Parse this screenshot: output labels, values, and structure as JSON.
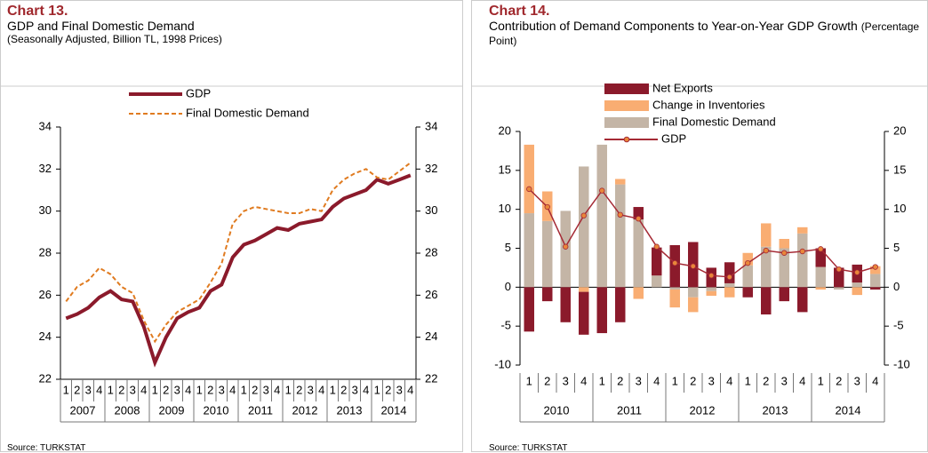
{
  "chart_data": [
    {
      "type": "line",
      "label": "Chart 13.",
      "title": "GDP and Final Domestic Demand",
      "subtitle": "(Seasonally Adjusted, Billion TL, 1998 Prices)",
      "source": "Source: TURKSTAT",
      "categories": [
        "1",
        "2",
        "3",
        "4",
        "1",
        "2",
        "3",
        "4",
        "1",
        "2",
        "3",
        "4",
        "1",
        "2",
        "3",
        "4",
        "1",
        "2",
        "3",
        "4",
        "1",
        "2",
        "3",
        "4",
        "1",
        "2",
        "3",
        "4",
        "1",
        "2",
        "3",
        "4"
      ],
      "years": [
        "2007",
        "2008",
        "2009",
        "2010",
        "2011",
        "2012",
        "2013",
        "2014"
      ],
      "ylim": [
        22,
        34
      ],
      "yticks": [
        22,
        24,
        26,
        28,
        30,
        32,
        34
      ],
      "series": [
        {
          "name": "GDP",
          "color": "#8b1a2b",
          "style": "solid",
          "kind": "line",
          "values": [
            24.9,
            25.1,
            25.4,
            25.9,
            26.2,
            25.8,
            25.7,
            24.5,
            22.8,
            24.0,
            24.9,
            25.2,
            25.4,
            26.2,
            26.5,
            27.8,
            28.4,
            28.6,
            28.9,
            29.2,
            29.1,
            29.4,
            29.5,
            29.6,
            30.2,
            30.6,
            30.8,
            31.0,
            31.5,
            31.3,
            31.5,
            31.7
          ]
        },
        {
          "name": "Final Domestic Demand",
          "color": "#e07b20",
          "style": "dashed",
          "kind": "line",
          "values": [
            25.7,
            26.4,
            26.7,
            27.3,
            27.0,
            26.4,
            26.1,
            24.8,
            23.8,
            24.6,
            25.2,
            25.5,
            25.8,
            26.6,
            27.5,
            29.4,
            30.0,
            30.2,
            30.1,
            30.0,
            29.9,
            29.9,
            30.1,
            30.0,
            31.0,
            31.5,
            31.8,
            32.0,
            31.6,
            31.5,
            31.9,
            32.3
          ]
        }
      ]
    },
    {
      "type": "bar",
      "label": "Chart 14.",
      "title": "Contribution of Demand Components to Year-on-Year GDP Growth",
      "subtitle": "(Percentage Point)",
      "source": "Source: TURKSTAT",
      "categories": [
        "1",
        "2",
        "3",
        "4",
        "1",
        "2",
        "3",
        "4",
        "1",
        "2",
        "3",
        "4",
        "1",
        "2",
        "3",
        "4",
        "1",
        "2",
        "3",
        "4"
      ],
      "years": [
        "2010",
        "2011",
        "2012",
        "2013",
        "2014"
      ],
      "ylim": [
        -10,
        20
      ],
      "yticks": [
        -10,
        -5,
        0,
        5,
        10,
        15,
        20
      ],
      "series": [
        {
          "name": "Net Exports",
          "color": "#8b1a2b",
          "kind": "bar",
          "values": [
            -5.7,
            -1.8,
            -4.5,
            -5.5,
            -5.9,
            -4.5,
            1.6,
            3.6,
            5.4,
            5.8,
            2.5,
            2.7,
            -1.3,
            -3.5,
            -1.8,
            -3.2,
            2.4,
            2.5,
            2.3,
            -0.3
          ]
        },
        {
          "name": "Change in Inventories",
          "color": "#f9ad72",
          "kind": "bar",
          "values": [
            8.8,
            3.8,
            0,
            -0.6,
            0,
            0.7,
            -1.5,
            0,
            -2.3,
            -1.9,
            -0.6,
            -1.3,
            1.6,
            3.0,
            1.2,
            0.8,
            -0.3,
            0,
            -1.0,
            1.0
          ]
        },
        {
          "name": "Final Domestic Demand",
          "color": "#c4b5a6",
          "kind": "bar",
          "values": [
            9.5,
            8.5,
            9.8,
            15.5,
            18.3,
            13.2,
            8.7,
            1.5,
            -0.3,
            -1.3,
            -0.5,
            0.5,
            2.8,
            5.2,
            5.0,
            6.9,
            2.6,
            -0.3,
            0.6,
            1.7
          ]
        },
        {
          "name": "GDP",
          "color": "#a52a35",
          "marker_color": "#e8863a",
          "kind": "line",
          "values": [
            12.6,
            10.3,
            5.2,
            9.2,
            12.4,
            9.3,
            8.8,
            5.2,
            3.1,
            2.7,
            1.5,
            1.3,
            3.1,
            4.7,
            4.4,
            4.6,
            4.9,
            2.3,
            1.9,
            2.6
          ]
        }
      ]
    }
  ]
}
